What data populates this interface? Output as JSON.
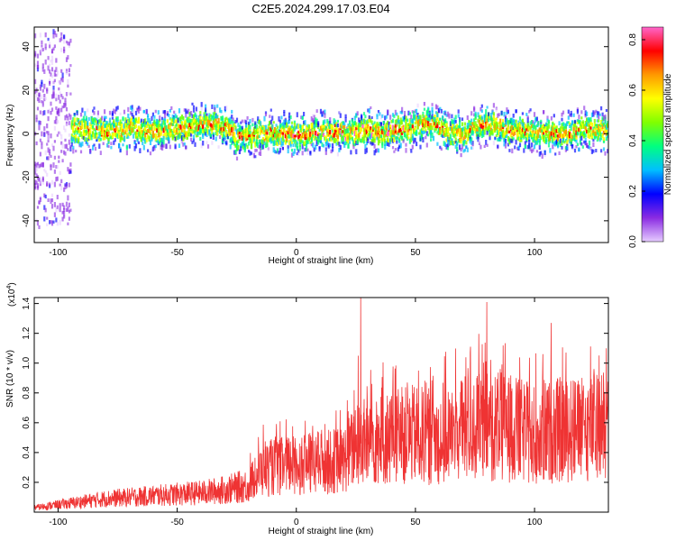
{
  "title": "C2E5.2024.299.17.03.E04",
  "chart_data": [
    {
      "type": "heatmap",
      "xlabel": "Height of straight line (km)",
      "ylabel": "Frequency (Hz)",
      "xlim": [
        -110,
        131
      ],
      "ylim": [
        -50,
        49
      ],
      "xticks": [
        -100,
        -50,
        0,
        50,
        100
      ],
      "yticks": [
        -40,
        -20,
        0,
        20,
        40
      ],
      "colorbar": {
        "label": "Normalized spectral amplitude",
        "range": [
          0.0,
          0.85
        ],
        "ticks": [
          "0.0",
          "0.2",
          "0.4",
          "0.6",
          "0.8"
        ],
        "colors": [
          "#e6ccff",
          "#8a2be2",
          "#0000ff",
          "#00bfff",
          "#00ff80",
          "#80ff00",
          "#ffff00",
          "#ff9900",
          "#ff0000",
          "#ff66cc"
        ]
      },
      "ridge": {
        "description_points_x": [
          -100,
          -90,
          -80,
          -70,
          -60,
          -50,
          -40,
          -30,
          -25,
          -20,
          -10,
          0,
          10,
          20,
          30,
          35,
          40,
          50,
          55,
          60,
          70,
          75,
          80,
          90,
          100,
          110,
          120,
          131
        ],
        "center_frequency": [
          2,
          2,
          1,
          2,
          1,
          2,
          4,
          3,
          -2,
          -1,
          0,
          -1,
          1,
          0,
          2,
          0,
          1,
          3,
          5,
          2,
          -1,
          3,
          4,
          1,
          0,
          0,
          1,
          1
        ]
      }
    },
    {
      "type": "line",
      "xlabel": "Height of straight line (km)",
      "ylabel": "SNR (10 * v/v)",
      "y_multiplier_label": "(x10",
      "y_multiplier_exp": "4",
      "xlim": [
        -110,
        131
      ],
      "ylim": [
        0,
        1.44
      ],
      "xticks": [
        -100,
        -50,
        0,
        50,
        100
      ],
      "yticks": [
        "0.2",
        "0.4",
        "0.6",
        "0.8",
        "1.0",
        "1.2",
        "1.4"
      ],
      "color": "#ef3333",
      "trend": {
        "x": [
          -110,
          -100,
          -90,
          -80,
          -70,
          -60,
          -50,
          -40,
          -30,
          -20,
          -15,
          -10,
          0,
          10,
          20,
          25,
          30,
          40,
          50,
          60,
          70,
          80,
          90,
          100,
          110,
          120,
          131
        ],
        "y": [
          0.03,
          0.05,
          0.07,
          0.09,
          0.1,
          0.11,
          0.12,
          0.13,
          0.15,
          0.18,
          0.28,
          0.3,
          0.32,
          0.33,
          0.35,
          0.45,
          0.48,
          0.5,
          0.52,
          0.5,
          0.55,
          0.58,
          0.56,
          0.52,
          0.55,
          0.55,
          0.58
        ]
      },
      "peaks": [
        {
          "x": 27,
          "y": 1.44
        },
        {
          "x": 80,
          "y": 1.41
        },
        {
          "x": 26,
          "y": 1.05
        },
        {
          "x": 107,
          "y": 1.27
        },
        {
          "x": 125,
          "y": 0.96
        }
      ]
    }
  ]
}
